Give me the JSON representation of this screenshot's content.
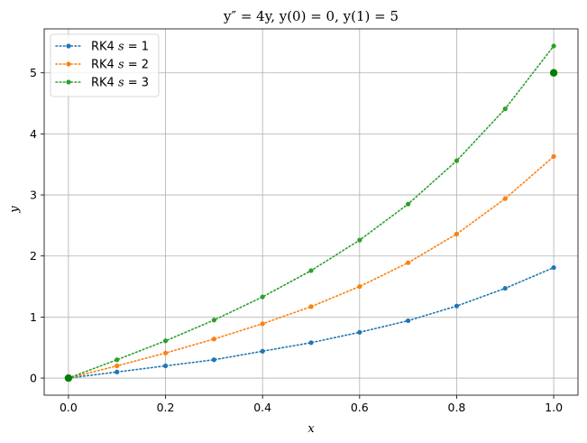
{
  "chart_data": {
    "type": "line",
    "title": "y″ = 4y, y(0) = 0, y(1) = 5",
    "xlabel": "x",
    "ylabel": "y",
    "xlim": [
      -0.05,
      1.05
    ],
    "ylim": [
      -0.28,
      5.72
    ],
    "xticks": [
      0.0,
      0.2,
      0.4,
      0.6,
      0.8,
      1.0
    ],
    "xtick_labels": [
      "0.0",
      "0.2",
      "0.4",
      "0.6",
      "0.8",
      "1.0"
    ],
    "yticks": [
      0,
      1,
      2,
      3,
      4,
      5
    ],
    "ytick_labels": [
      "0",
      "1",
      "2",
      "3",
      "4",
      "5"
    ],
    "grid": true,
    "legend_position": "top-left",
    "x": [
      0.0,
      0.1,
      0.2,
      0.3,
      0.4,
      0.5,
      0.6,
      0.7,
      0.8,
      0.9,
      1.0
    ],
    "series": [
      {
        "name": "RK4 s = 1",
        "legend_prefix": "RK4 ",
        "legend_var": "s",
        "legend_suffix": " = 1",
        "color": "#1f77b4",
        "values": [
          0,
          0.1,
          0.2,
          0.3,
          0.44,
          0.58,
          0.75,
          0.94,
          1.18,
          1.47,
          1.81
        ]
      },
      {
        "name": "RK4 s = 2",
        "legend_prefix": "RK4 ",
        "legend_var": "s",
        "legend_suffix": " = 2",
        "color": "#ff7f0e",
        "values": [
          0,
          0.2,
          0.41,
          0.64,
          0.89,
          1.17,
          1.5,
          1.89,
          2.36,
          2.94,
          3.63
        ]
      },
      {
        "name": "RK4 s = 3",
        "legend_prefix": "RK4 ",
        "legend_var": "s",
        "legend_suffix": " = 3",
        "color": "#2ca02c",
        "values": [
          0,
          0.3,
          0.61,
          0.95,
          1.33,
          1.76,
          2.26,
          2.85,
          3.56,
          4.41,
          5.44
        ]
      }
    ],
    "boundary_points": {
      "color": "#008000",
      "points": [
        [
          0,
          0
        ],
        [
          1,
          5
        ]
      ]
    }
  }
}
